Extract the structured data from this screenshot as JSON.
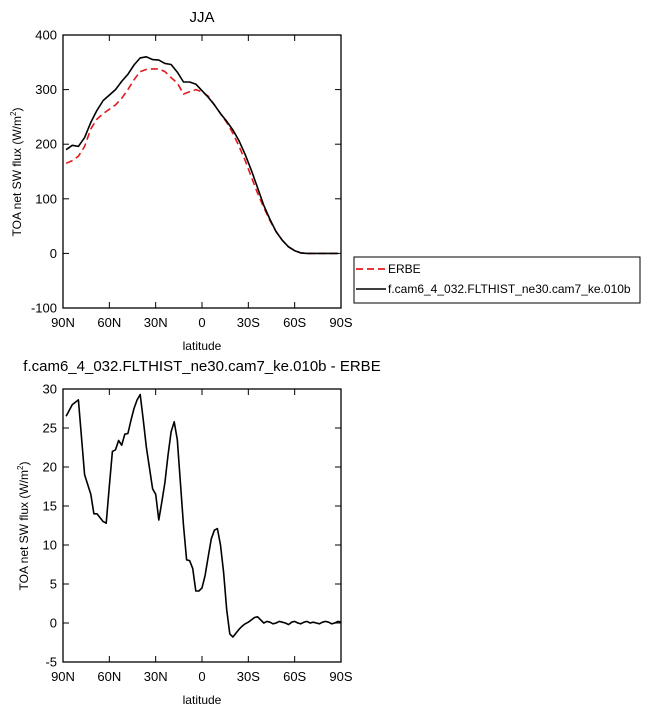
{
  "chart_data": [
    {
      "type": "line",
      "title": "JJA",
      "xlabel": "latitude",
      "ylabel_main": "TOA net SW flux (W/m",
      "ylabel_sup": "2",
      "ylabel_close": ")",
      "xlim": [
        90,
        -90
      ],
      "ylim": [
        -100,
        400
      ],
      "xticks": [
        90,
        60,
        30,
        0,
        -30,
        -60,
        -90
      ],
      "xticklabels": [
        "90N",
        "60N",
        "30N",
        "0",
        "30S",
        "60S",
        "90S"
      ],
      "yticks": [
        -100,
        0,
        100,
        200,
        300,
        400
      ],
      "yticklabels": [
        "-100",
        "0",
        "100",
        "200",
        "300",
        "400"
      ],
      "grid": false,
      "legend_position": "right-middle",
      "series": [
        {
          "name": "ERBE",
          "color": "#e31a1c",
          "dash": "dashed",
          "x": [
            88,
            84,
            80,
            76,
            72,
            68,
            64,
            60,
            56,
            52,
            48,
            44,
            40,
            36,
            32,
            28,
            24,
            20,
            16,
            12,
            8,
            4,
            0,
            -4,
            -8,
            -12,
            -16,
            -20,
            -24,
            -28,
            -32,
            -36,
            -40,
            -44,
            -48,
            -52,
            -56,
            -60,
            -64,
            -68,
            -72,
            -76,
            -80,
            -84,
            -88
          ],
          "y": [
            165,
            170,
            178,
            196,
            228,
            246,
            256,
            264,
            272,
            284,
            300,
            318,
            333,
            337,
            338,
            338,
            333,
            322,
            312,
            292,
            296,
            300,
            296,
            288,
            272,
            256,
            240,
            220,
            196,
            170,
            140,
            110,
            84,
            60,
            40,
            24,
            12,
            5,
            1,
            0,
            0,
            0,
            0,
            0,
            0
          ]
        },
        {
          "name": "f.cam6_4_032.FLTHIST_ne30.cam7_ke.010b",
          "color": "#000000",
          "dash": "solid",
          "x": [
            88,
            84,
            80,
            76,
            72,
            68,
            64,
            60,
            56,
            52,
            48,
            44,
            40,
            36,
            32,
            28,
            24,
            20,
            16,
            12,
            8,
            4,
            0,
            -4,
            -8,
            -12,
            -16,
            -20,
            -24,
            -28,
            -32,
            -36,
            -40,
            -44,
            -48,
            -52,
            -56,
            -60,
            -64,
            -68,
            -72,
            -76,
            -80,
            -84,
            -88
          ],
          "y": [
            190,
            198,
            196,
            212,
            240,
            262,
            280,
            290,
            300,
            315,
            328,
            345,
            358,
            360,
            355,
            354,
            348,
            346,
            332,
            314,
            314,
            310,
            298,
            286,
            272,
            256,
            242,
            226,
            206,
            181,
            152,
            120,
            88,
            62,
            40,
            24,
            12,
            5,
            1,
            0,
            0,
            0,
            0,
            0,
            0
          ]
        }
      ]
    },
    {
      "type": "line",
      "title": "f.cam6_4_032.FLTHIST_ne30.cam7_ke.010b - ERBE",
      "xlabel": "latitude",
      "ylabel": "TOA net SW flux (W/m",
      "ylabel_sup": "2",
      "ylabel_close": ")",
      "xlim": [
        90,
        -90
      ],
      "ylim": [
        -5,
        30
      ],
      "xticks": [
        90,
        60,
        30,
        0,
        -30,
        -60,
        -90
      ],
      "xticklabels": [
        "90N",
        "60N",
        "30N",
        "0",
        "30S",
        "60S",
        "90S"
      ],
      "yticks": [
        -5,
        0,
        5,
        10,
        15,
        20,
        25,
        30
      ],
      "yticklabels": [
        "-5",
        "0",
        "5",
        "10",
        "15",
        "20",
        "25",
        "30"
      ],
      "grid": false,
      "series": [
        {
          "color": "#000000",
          "x": [
            88,
            84,
            80,
            76,
            72,
            70,
            68,
            66,
            64,
            62,
            60,
            58,
            56,
            54,
            52,
            50,
            48,
            46,
            44,
            42,
            40,
            38,
            36,
            32,
            30,
            28,
            26,
            24,
            22,
            20,
            18,
            16,
            14,
            12,
            10,
            8,
            6,
            4,
            2,
            0,
            -2,
            -4,
            -6,
            -8,
            -10,
            -12,
            -14,
            -16,
            -18,
            -20,
            -22,
            -24,
            -26,
            -28,
            -30,
            -32,
            -34,
            -36,
            -38,
            -40,
            -42,
            -44,
            -46,
            -48,
            -50,
            -52,
            -54,
            -56,
            -58,
            -60,
            -62,
            -64,
            -66,
            -68,
            -70,
            -72,
            -74,
            -76,
            -78,
            -80,
            -82,
            -84,
            -86,
            -88,
            -90
          ],
          "y": [
            26.5,
            28,
            28.6,
            19,
            16.5,
            14,
            14,
            13.5,
            13,
            12.8,
            17.5,
            22,
            22.2,
            23.4,
            22.8,
            24.2,
            24.3,
            26,
            27.5,
            28.6,
            29.3,
            26,
            22.5,
            17.2,
            16.5,
            13.2,
            15.5,
            18,
            21.5,
            24.5,
            25.8,
            23.5,
            18,
            12.5,
            8.1,
            8.0,
            7,
            4.1,
            4.1,
            4.5,
            6.1,
            8.5,
            10.8,
            11.9,
            12.1,
            10,
            6.5,
            1.7,
            -1.4,
            -1.8,
            -1.3,
            -0.8,
            -0.4,
            -0.1,
            0.1,
            0.4,
            0.7,
            0.8,
            0.4,
            0.0,
            0.2,
            0.1,
            -0.1,
            0.0,
            0.2,
            0.1,
            0.0,
            -0.2,
            0.1,
            0.2,
            0.0,
            -0.1,
            0.1,
            0.2,
            0.0,
            0.1,
            0.0,
            -0.1,
            0.1,
            0.2,
            0.1,
            -0.1,
            0.0,
            0.2,
            0.1
          ]
        }
      ]
    }
  ]
}
